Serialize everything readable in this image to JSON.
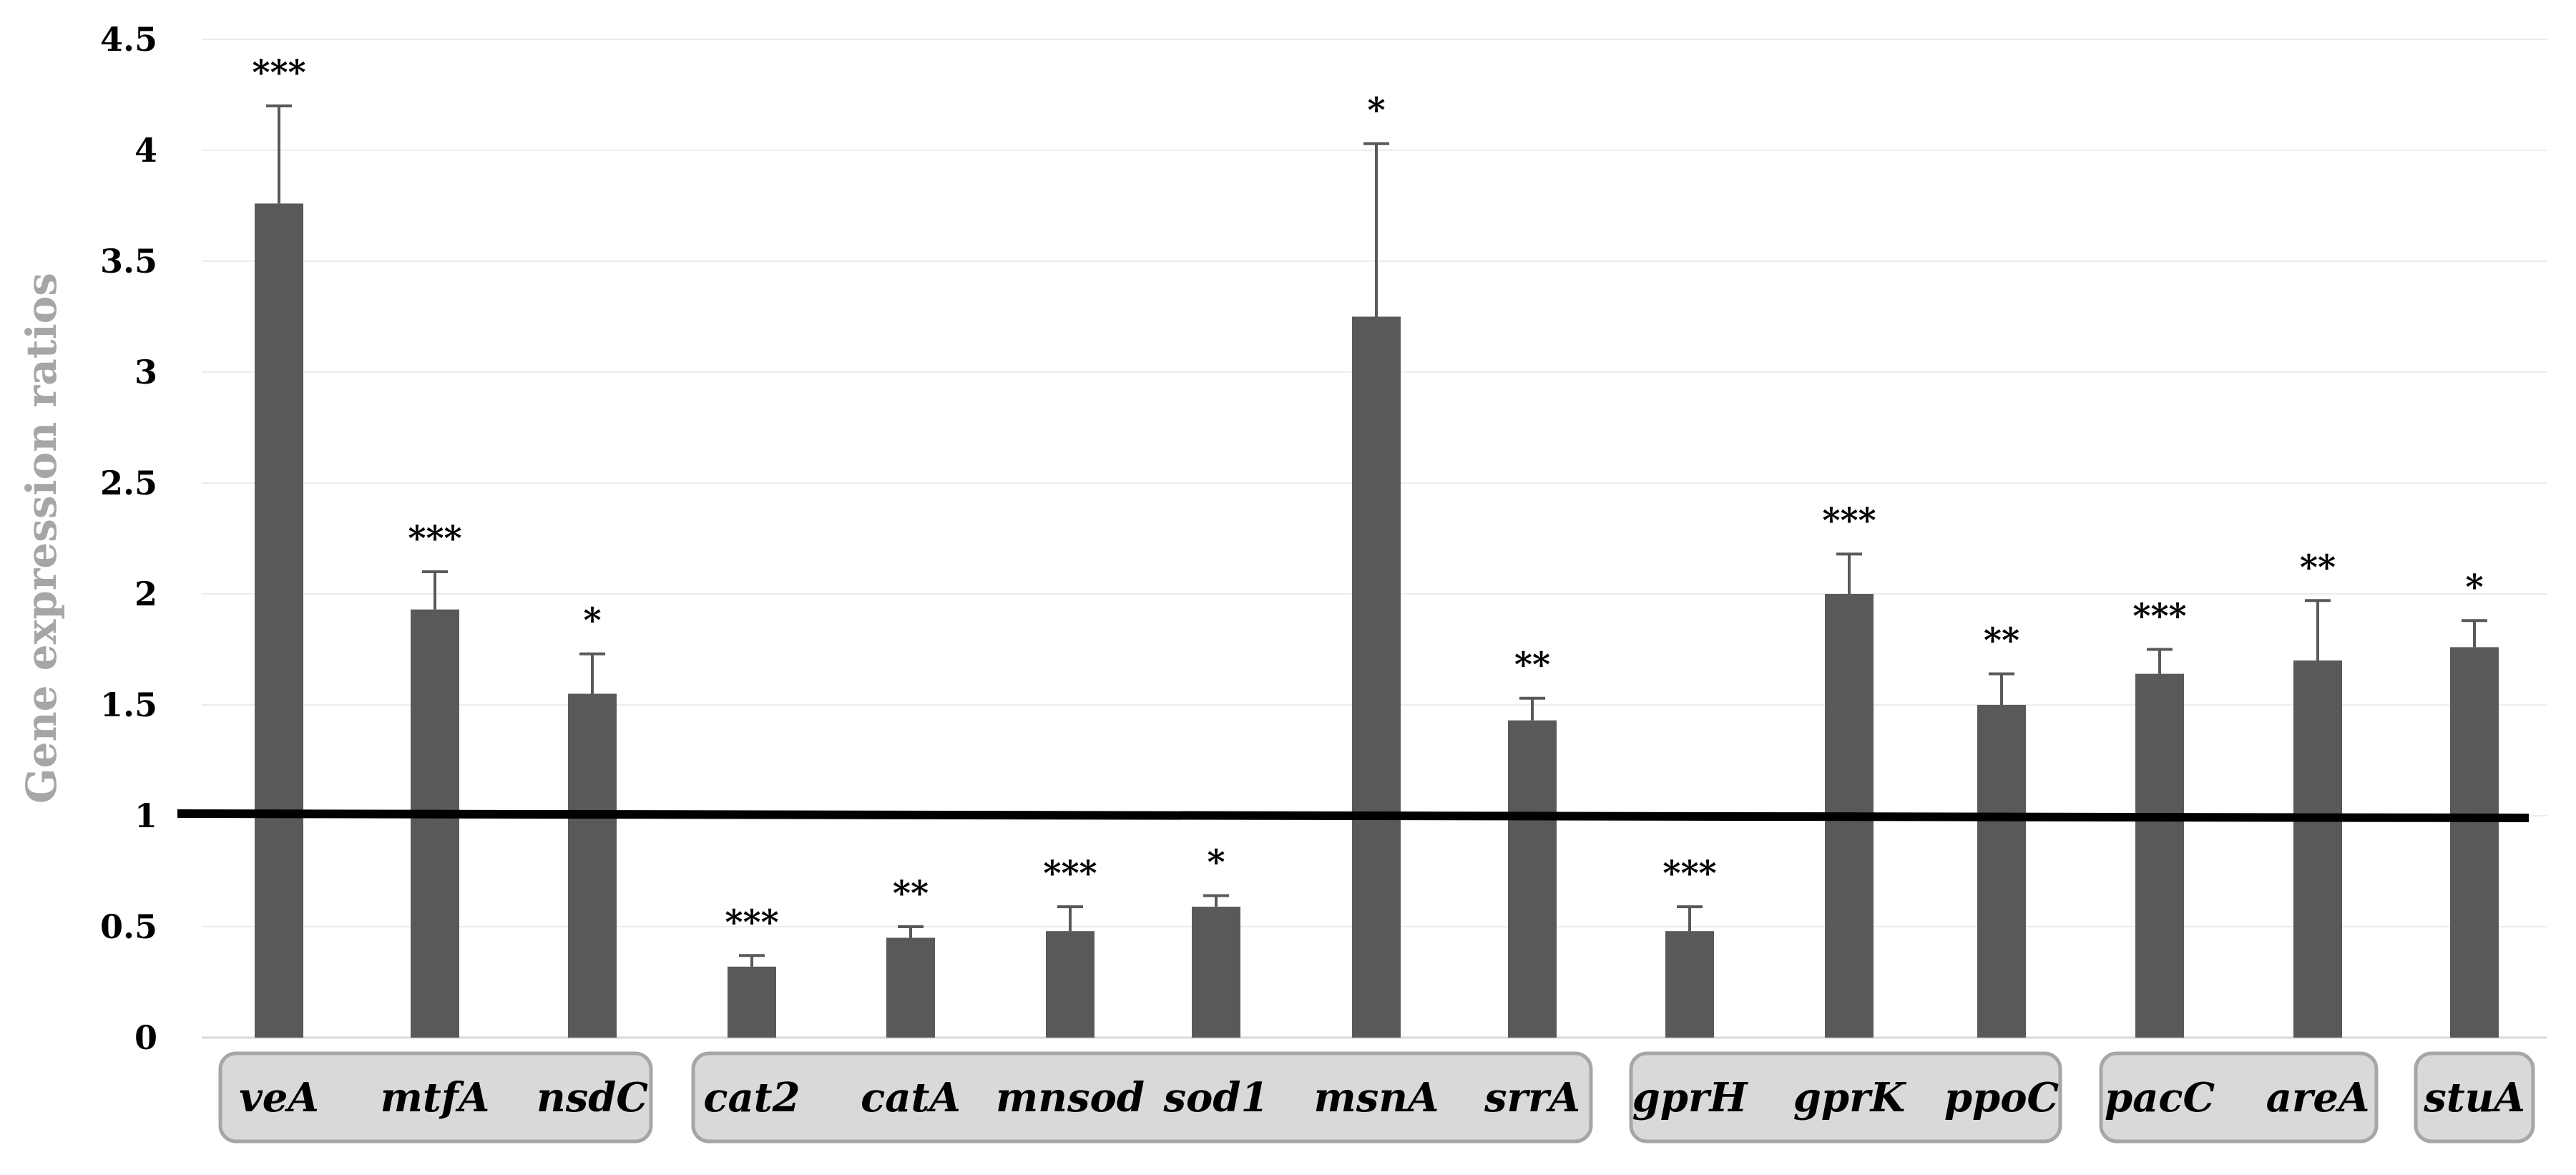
{
  "chart_data": {
    "type": "bar",
    "title": "",
    "xlabel": "",
    "ylabel": "Gene expression ratios",
    "ylim": [
      0,
      4.5
    ],
    "yticks": [
      "0",
      "0.5",
      "1",
      "1.5",
      "2",
      "2.5",
      "3",
      "3.5",
      "4",
      "4.5"
    ],
    "grid": true,
    "reference_line": 1,
    "categories": [
      "veA",
      "mtfA",
      "nsdC",
      "cat2",
      "catA",
      "mnsod",
      "sod1",
      "msnA",
      "srrA",
      "gprH",
      "gprK",
      "ppoC",
      "pacC",
      "areA",
      "stuA"
    ],
    "values": [
      3.76,
      1.93,
      1.55,
      0.32,
      0.45,
      0.48,
      0.59,
      3.25,
      1.43,
      0.48,
      2.0,
      1.5,
      1.64,
      1.7,
      1.76
    ],
    "errors": [
      0.44,
      0.17,
      0.18,
      0.05,
      0.05,
      0.11,
      0.05,
      0.78,
      0.1,
      0.11,
      0.18,
      0.14,
      0.11,
      0.27,
      0.12
    ],
    "significance": [
      "***",
      "***",
      "*",
      "***",
      "**",
      "***",
      "*",
      "*",
      "**",
      "***",
      "***",
      "**",
      "***",
      "**",
      "*"
    ],
    "groups": [
      {
        "members": [
          "veA",
          "mtfA",
          "nsdC"
        ]
      },
      {
        "members": [
          "cat2",
          "catA",
          "mnsod",
          "sod1",
          "msnA",
          "srrA"
        ]
      },
      {
        "members": [
          "gprH",
          "gprK",
          "ppoC"
        ]
      },
      {
        "members": [
          "pacC",
          "areA"
        ]
      },
      {
        "members": [
          "stuA"
        ]
      }
    ],
    "colors": {
      "bar": "#595959",
      "reference_line": "#000000",
      "ylabel": "#a6a6a6",
      "group_box": "#d9d9d9",
      "group_border": "#a6a6a6"
    }
  }
}
